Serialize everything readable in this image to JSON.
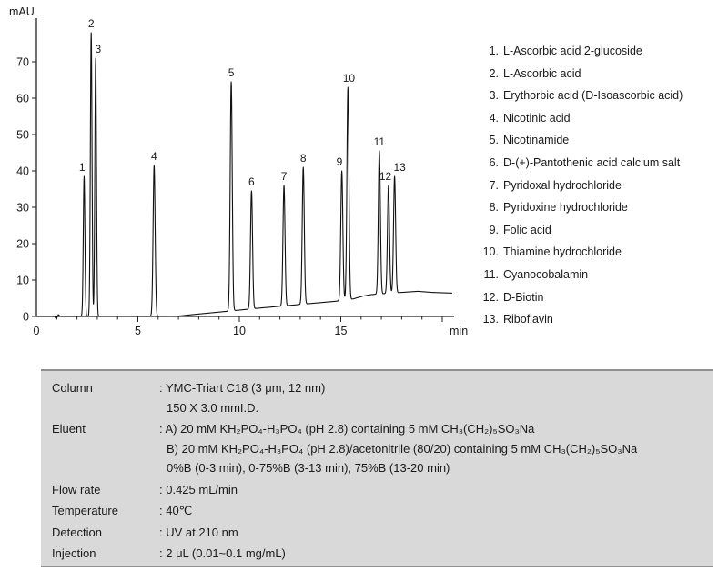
{
  "chart_data": {
    "type": "line",
    "title": "",
    "xlabel": "min",
    "ylabel": "mAU",
    "xlim": [
      0,
      20.6
    ],
    "ylim": [
      0,
      80
    ],
    "x_ticks": [
      0,
      5,
      10,
      15
    ],
    "y_ticks": [
      0,
      10,
      20,
      30,
      40,
      50,
      60,
      70
    ],
    "grid": false,
    "line_color": "#111111",
    "baseline": [
      [
        0,
        0
      ],
      [
        0.9,
        0
      ],
      [
        0.98,
        -0.7
      ],
      [
        1.08,
        0.5
      ],
      [
        1.18,
        0
      ],
      [
        7.0,
        0.1
      ],
      [
        7.5,
        0.4
      ],
      [
        9,
        1.2
      ],
      [
        11,
        2.3
      ],
      [
        13,
        3.3
      ],
      [
        14.8,
        4.2
      ],
      [
        15.6,
        4.8
      ],
      [
        16.1,
        5.6
      ],
      [
        16.5,
        6.0
      ],
      [
        18,
        6.6
      ],
      [
        18.8,
        6.9
      ],
      [
        19.5,
        6.6
      ],
      [
        20.5,
        6.4
      ]
    ],
    "peaks": [
      {
        "n": "1",
        "t": 2.35,
        "apex": 38.5,
        "sigma": 0.04,
        "ldx": -0.1
      },
      {
        "n": "2",
        "t": 2.7,
        "apex": 78.0,
        "sigma": 0.04
      },
      {
        "n": "3",
        "t": 2.92,
        "apex": 71.0,
        "sigma": 0.04,
        "ldx": 0.12
      },
      {
        "n": "4",
        "t": 5.8,
        "apex": 41.5,
        "sigma": 0.05
      },
      {
        "n": "5",
        "t": 9.6,
        "apex": 64.5,
        "sigma": 0.05
      },
      {
        "n": "6",
        "t": 10.6,
        "apex": 34.5,
        "sigma": 0.05
      },
      {
        "n": "7",
        "t": 12.2,
        "apex": 36.0,
        "sigma": 0.05
      },
      {
        "n": "8",
        "t": 13.15,
        "apex": 41.0,
        "sigma": 0.05
      },
      {
        "n": "9",
        "t": 15.05,
        "apex": 40.0,
        "sigma": 0.05,
        "ldx": -0.12
      },
      {
        "n": "10",
        "t": 15.35,
        "apex": 63.0,
        "sigma": 0.05,
        "ldx": 0.05
      },
      {
        "n": "11",
        "t": 16.9,
        "apex": 45.5,
        "sigma": 0.05
      },
      {
        "n": "12",
        "t": 17.35,
        "apex": 36.0,
        "sigma": 0.05,
        "ldx": -0.15
      },
      {
        "n": "13",
        "t": 17.65,
        "apex": 38.5,
        "sigma": 0.05,
        "ldx": 0.25
      }
    ]
  },
  "legend": {
    "items": [
      {
        "num": "1.",
        "name": "L-Ascorbic acid 2-glucoside"
      },
      {
        "num": "2.",
        "name": "L-Ascorbic acid"
      },
      {
        "num": "3.",
        "name": "Erythorbic acid (D-Isoascorbic acid)"
      },
      {
        "num": "4.",
        "name": "Nicotinic acid"
      },
      {
        "num": "5.",
        "name": "Nicotinamide"
      },
      {
        "num": "6.",
        "name": "D-(+)-Pantothenic acid calcium salt"
      },
      {
        "num": "7.",
        "name": "Pyridoxal hydrochloride"
      },
      {
        "num": "8.",
        "name": "Pyridoxine hydrochloride"
      },
      {
        "num": "9.",
        "name": "Folic acid"
      },
      {
        "num": "10.",
        "name": "Thiamine hydrochloride"
      },
      {
        "num": "11.",
        "name": "Cyanocobalamin"
      },
      {
        "num": "12.",
        "name": "D-Biotin"
      },
      {
        "num": "13.",
        "name": "Riboflavin"
      }
    ]
  },
  "conditions": {
    "rows": [
      {
        "label": "Column",
        "lines": [
          ": YMC-Triart C18 (3 μm, 12 nm)",
          "150 X 3.0 mmI.D."
        ]
      },
      {
        "label": "Eluent",
        "lines": [
          ": A) 20 mM KH₂PO₄-H₃PO₄ (pH 2.8) containing 5 mM CH₃(CH₂)₅SO₃Na",
          "B) 20 mM KH₂PO₄-H₃PO₄ (pH 2.8)/acetonitrile (80/20) containing 5 mM CH₃(CH₂)₅SO₃Na",
          "0%B (0-3 min), 0-75%B (3-13 min), 75%B (13-20 min)"
        ]
      },
      {
        "label": "Flow rate",
        "lines": [
          ": 0.425 mL/min"
        ]
      },
      {
        "label": "Temperature",
        "lines": [
          ": 40℃"
        ]
      },
      {
        "label": "Detection",
        "lines": [
          ": UV at 210 nm"
        ]
      },
      {
        "label": "Injection",
        "lines": [
          ": 2 μL (0.01~0.1 mg/mL)"
        ]
      }
    ]
  }
}
